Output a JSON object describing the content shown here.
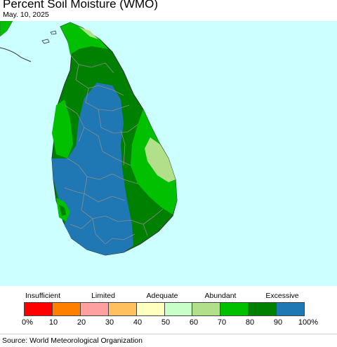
{
  "header": {
    "title": "Percent Soil Moisture (WMO)",
    "date": "May. 10, 2025"
  },
  "map": {
    "region": "Sri Lanka",
    "ocean_color": "#ccffff",
    "boundary_color": "#8c8c8c",
    "regions": [
      {
        "name": "india-coast",
        "category": "70-80",
        "color": "#00c000"
      },
      {
        "name": "jaffna-peninsula",
        "category": "70-80",
        "color": "#00c000"
      },
      {
        "name": "north-band",
        "category": "80-90",
        "color": "#008000"
      },
      {
        "name": "central-highlands",
        "category": "90-100",
        "color": "#1f78b4"
      },
      {
        "name": "west-coast",
        "category": "70-80",
        "color": "#00c000"
      },
      {
        "name": "east-coast",
        "category": "70-80",
        "color": "#00c000"
      },
      {
        "name": "batticaloa-area",
        "category": "60-70",
        "color": "#b2df8a"
      }
    ]
  },
  "legend": {
    "groups": [
      {
        "label": "Insufficient"
      },
      {
        "label": "Limited"
      },
      {
        "label": "Adequate"
      },
      {
        "label": "Abundant"
      },
      {
        "label": "Excessive"
      }
    ],
    "bins": [
      {
        "range": "0-10",
        "color": "#ff0000"
      },
      {
        "range": "10-20",
        "color": "#ff8000"
      },
      {
        "range": "20-30",
        "color": "#ffa0a0"
      },
      {
        "range": "30-40",
        "color": "#ffc060"
      },
      {
        "range": "40-50",
        "color": "#ffffc0"
      },
      {
        "range": "50-60",
        "color": "#c8ffc8"
      },
      {
        "range": "60-70",
        "color": "#b2df8a"
      },
      {
        "range": "70-80",
        "color": "#00c000"
      },
      {
        "range": "80-90",
        "color": "#008000"
      },
      {
        "range": "90-100",
        "color": "#1f78b4"
      }
    ],
    "ticks": [
      "0%",
      "10",
      "20",
      "30",
      "40",
      "50",
      "60",
      "70",
      "80",
      "90",
      "100%"
    ]
  },
  "footer": {
    "source": "Source: World Meteorological Organization"
  }
}
